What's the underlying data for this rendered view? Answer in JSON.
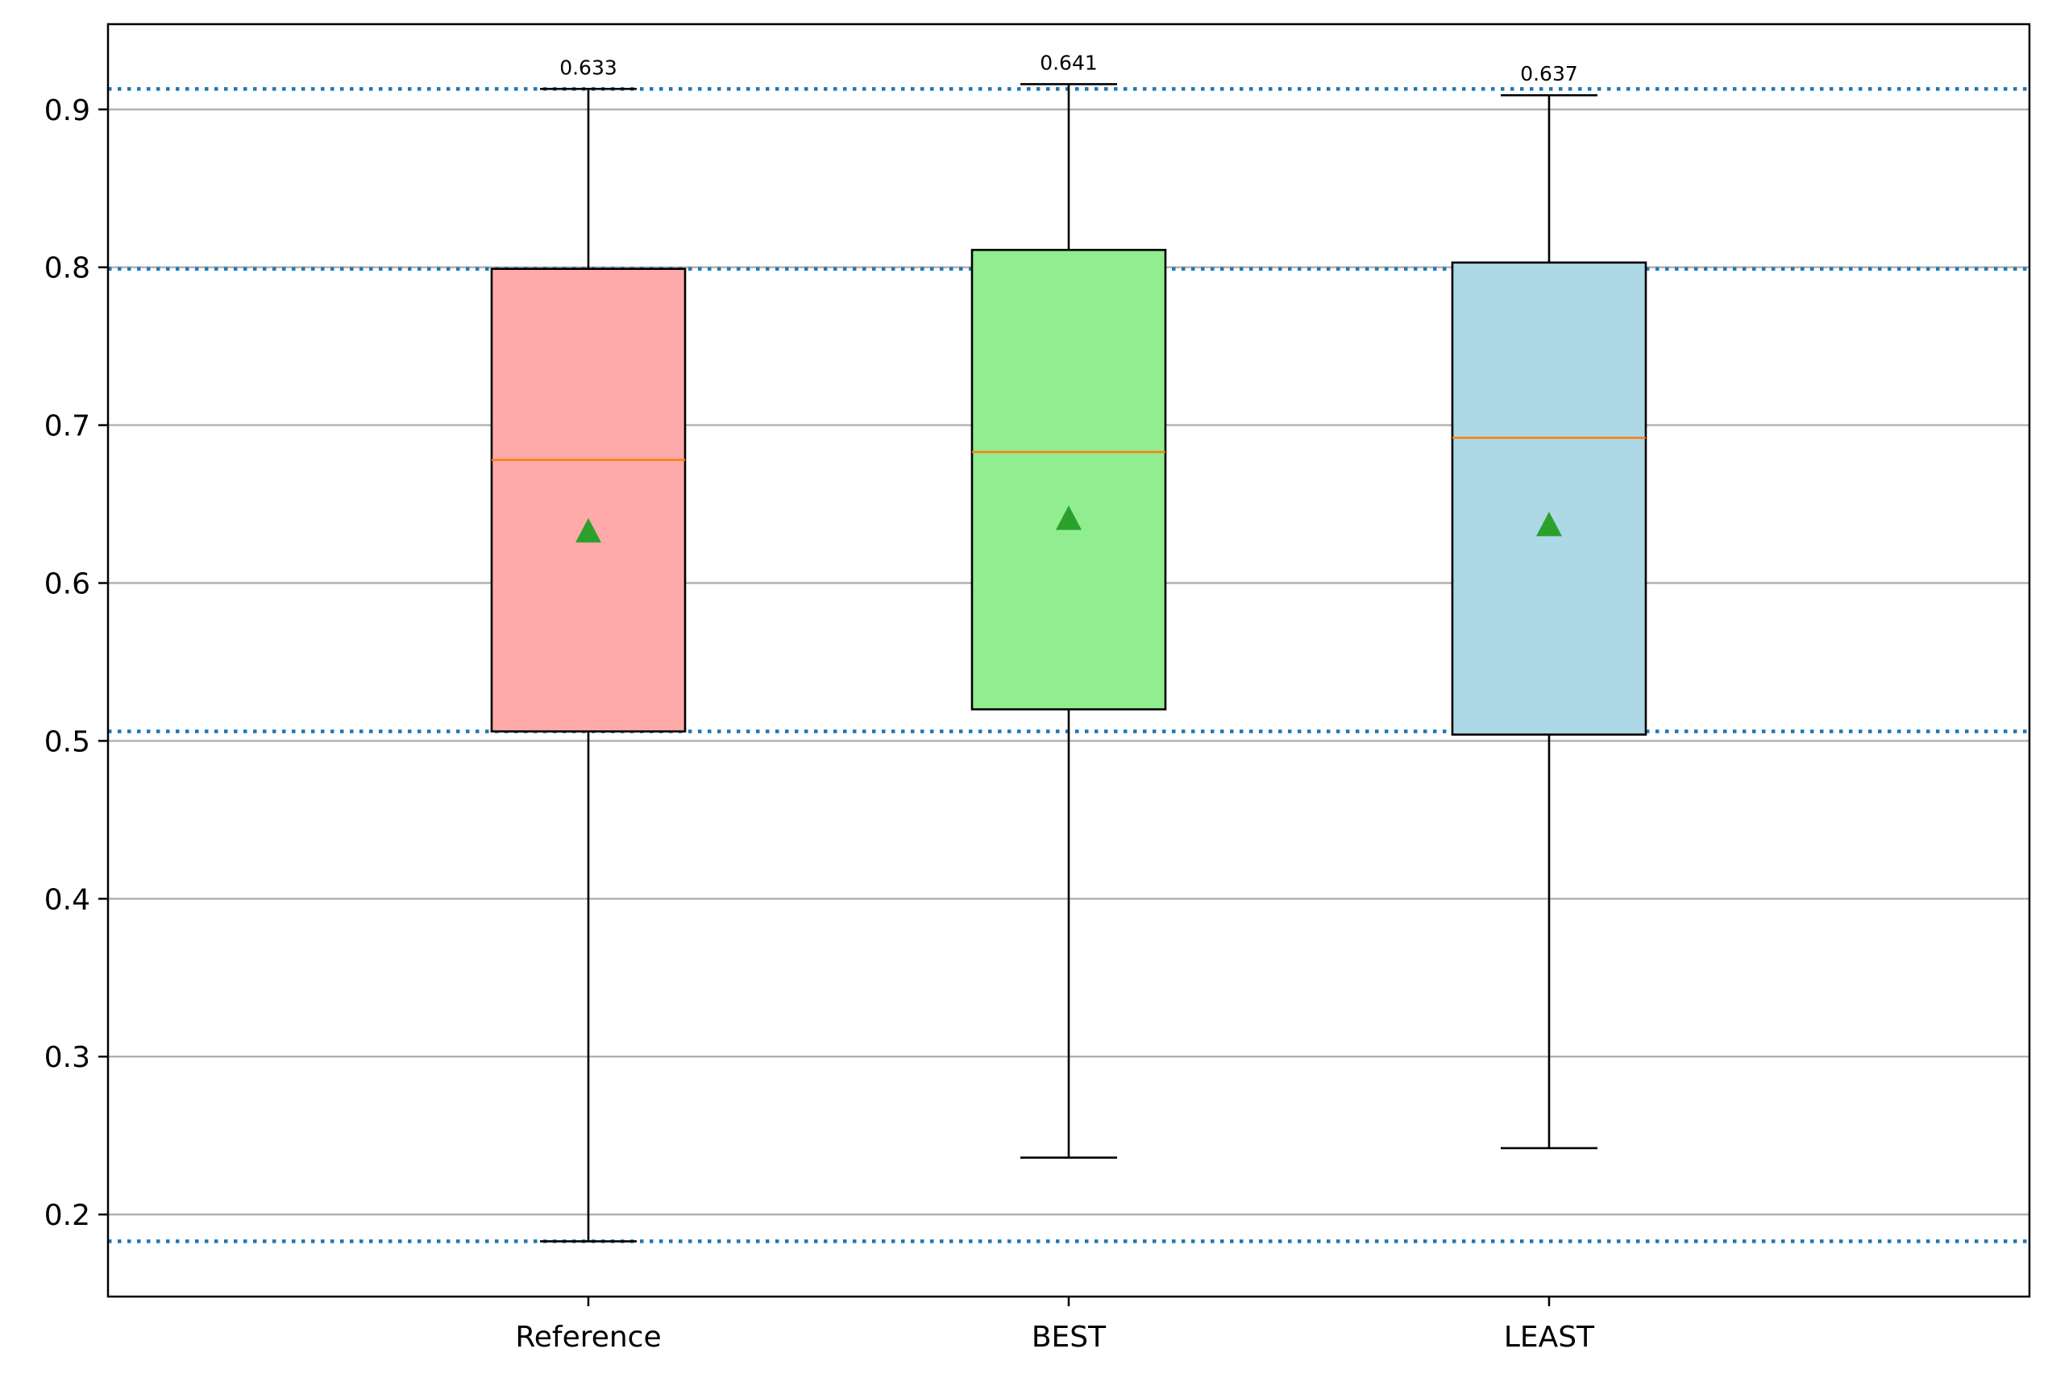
{
  "chart_data": {
    "type": "box",
    "title": "",
    "xlabel": "",
    "ylabel": "",
    "ylim": [
      0.148,
      0.954
    ],
    "grid": {
      "y": true,
      "x": false
    },
    "categories": [
      "Reference",
      "BEST",
      "LEAST"
    ],
    "yticks": [
      0.2,
      0.3,
      0.4,
      0.5,
      0.6,
      0.7,
      0.8,
      0.9
    ],
    "ytick_labels": [
      "0.2",
      "0.3",
      "0.4",
      "0.5",
      "0.6",
      "0.7",
      "0.8",
      "0.9"
    ],
    "boxes": [
      {
        "category": "Reference",
        "whisker_low": 0.183,
        "q1": 0.506,
        "median": 0.678,
        "q3": 0.799,
        "whisker_high": 0.913,
        "mean": 0.633,
        "mean_label": "0.633",
        "color": "#FFAAAA"
      },
      {
        "category": "BEST",
        "whisker_low": 0.236,
        "q1": 0.52,
        "median": 0.683,
        "q3": 0.811,
        "whisker_high": 0.916,
        "mean": 0.641,
        "mean_label": "0.641",
        "color": "#90EE90"
      },
      {
        "category": "LEAST",
        "whisker_low": 0.242,
        "q1": 0.504,
        "median": 0.692,
        "q3": 0.803,
        "whisker_high": 0.909,
        "mean": 0.637,
        "mean_label": "0.637",
        "color": "#ADD8E6"
      }
    ],
    "reference_lines": [
      0.913,
      0.799,
      0.506,
      0.183
    ],
    "colors": {
      "median": "#FF7F0E",
      "mean_marker": "#2CA02C",
      "reference_line": "#1F77B4",
      "grid": "#B0B0B0",
      "box_edge": "#000000"
    }
  }
}
